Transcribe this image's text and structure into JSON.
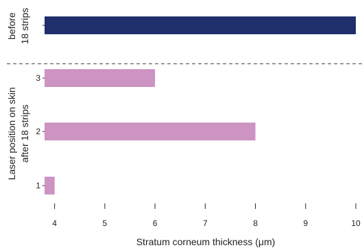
{
  "chart_data": {
    "type": "bar",
    "orientation": "horizontal",
    "xlabel": "Stratum corneum thickness (μm)",
    "xlim": [
      3.8,
      10
    ],
    "xticks": [
      "4",
      "5",
      "6",
      "7",
      "8",
      "9",
      "10"
    ],
    "grid": false,
    "groups": [
      {
        "label_lines": [
          "before",
          "18 strips"
        ],
        "color": "#1f2f6b",
        "bars": [
          {
            "label": "",
            "value": 10
          }
        ]
      },
      {
        "label_lines": [
          "Laser position on skin",
          "after 18 strips"
        ],
        "color": "#cc93c3",
        "bars": [
          {
            "label": "3",
            "value": 6
          },
          {
            "label": "2",
            "value": 8
          },
          {
            "label": "1",
            "value": 4
          }
        ]
      }
    ]
  }
}
